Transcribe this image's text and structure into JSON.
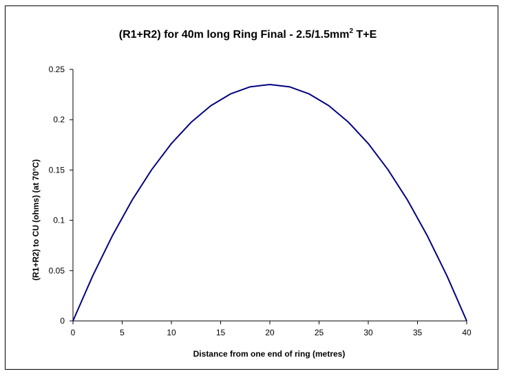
{
  "chart_data": {
    "type": "line",
    "title": "(R1+R2) for 40m long Ring Final - 2.5/1.5mm",
    "title_superscript": "2",
    "title_suffix": " T+E",
    "xlabel": "Distance from one end of ring (metres)",
    "ylabel": "(R1+R2) to CU (ohms) (at 70°C)",
    "xlim": [
      0,
      40
    ],
    "ylim": [
      0,
      0.25
    ],
    "x_ticks": [
      "0",
      "5",
      "10",
      "15",
      "20",
      "25",
      "30",
      "35",
      "40"
    ],
    "y_ticks": [
      "0",
      "0.05",
      "0.1",
      "0.15",
      "0.2",
      "0.25"
    ],
    "grid": false,
    "legend": "none",
    "series": [
      {
        "color": "#000080",
        "x": [
          0,
          2,
          4,
          6,
          8,
          10,
          12,
          14,
          16,
          18,
          20,
          22,
          24,
          26,
          28,
          30,
          32,
          34,
          36,
          38,
          40
        ],
        "y": [
          0,
          0.0447,
          0.0846,
          0.1199,
          0.1504,
          0.1763,
          0.1974,
          0.2139,
          0.2256,
          0.2327,
          0.235,
          0.2327,
          0.2256,
          0.2139,
          0.1974,
          0.1763,
          0.1504,
          0.1199,
          0.0846,
          0.0447,
          0
        ]
      }
    ]
  }
}
